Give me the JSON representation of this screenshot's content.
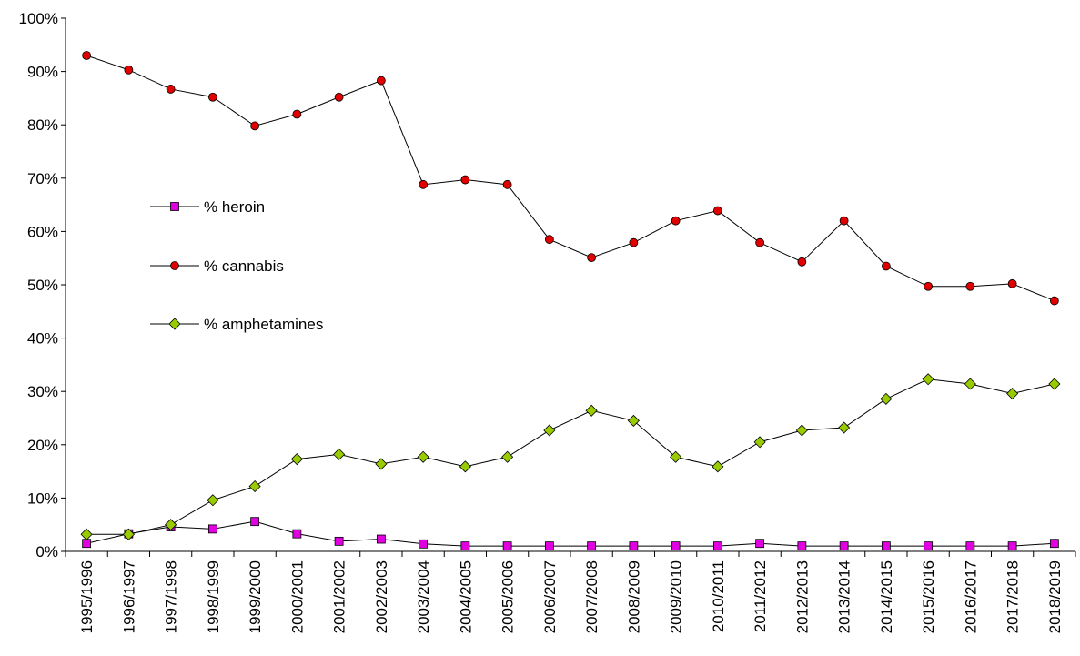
{
  "chart_data": {
    "type": "line",
    "title": "",
    "xlabel": "",
    "ylabel": "",
    "ylim": [
      0,
      100
    ],
    "y_ticks": [
      "0%",
      "10%",
      "20%",
      "30%",
      "40%",
      "50%",
      "60%",
      "70%",
      "80%",
      "90%",
      "100%"
    ],
    "legend_position": "left-middle",
    "grid": false,
    "categories": [
      "1995/1996",
      "1996/1997",
      "1997/1998",
      "1998/1999",
      "1999/2000",
      "2000/2001",
      "2001/2002",
      "2002/2003",
      "2003/2004",
      "2004/2005",
      "2005/2006",
      "2006/2007",
      "2007/2008",
      "2008/2009",
      "2009/2010",
      "2010/2011",
      "2011/2012",
      "2012/2013",
      "2013/2014",
      "2014/2015",
      "2015/2016",
      "2016/2017",
      "2017/2018",
      "2018/2019"
    ],
    "series": [
      {
        "name": "% heroin",
        "marker": "square",
        "color": "#e000e0",
        "values": [
          1.5,
          3.3,
          4.6,
          4.2,
          5.6,
          3.3,
          1.9,
          2.3,
          1.4,
          1.0,
          1.0,
          1.0,
          1.0,
          1.0,
          1.0,
          1.0,
          1.5,
          1.0,
          1.0,
          1.0,
          1.0,
          1.0,
          1.0,
          1.5
        ]
      },
      {
        "name": "% cannabis",
        "marker": "circle",
        "color": "#e00000",
        "values": [
          93,
          90.3,
          86.7,
          85.2,
          79.8,
          82,
          85.2,
          88.3,
          68.8,
          69.7,
          68.8,
          58.5,
          55.1,
          57.9,
          62,
          63.9,
          57.9,
          54.3,
          62,
          53.5,
          49.7,
          49.7,
          50.2,
          47
        ]
      },
      {
        "name": "% amphetamines",
        "marker": "diamond",
        "color": "#99cc00",
        "values": [
          3.2,
          3.2,
          5.0,
          9.6,
          12.2,
          17.3,
          18.2,
          16.4,
          17.7,
          15.9,
          17.7,
          22.7,
          26.4,
          24.5,
          17.7,
          15.9,
          20.5,
          22.7,
          23.2,
          28.6,
          32.3,
          31.4,
          29.6,
          31.4
        ]
      }
    ]
  }
}
